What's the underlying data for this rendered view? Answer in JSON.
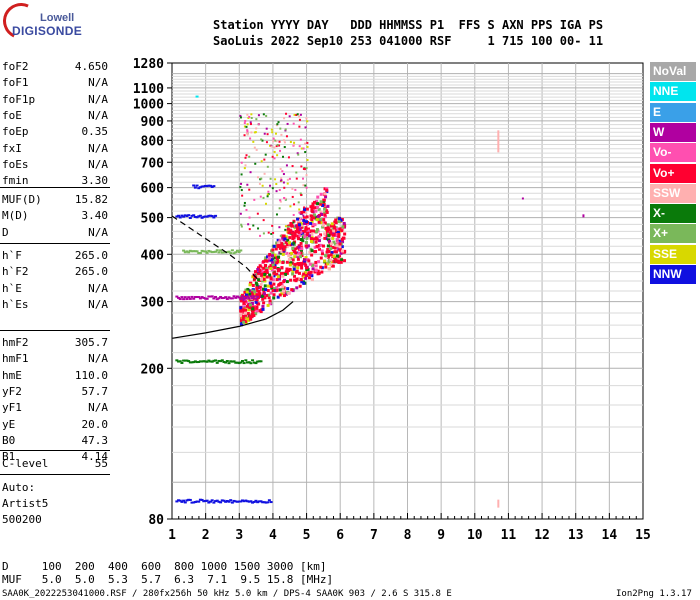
{
  "logo": {
    "line1": "Lowell",
    "line2": "DIGISONDE"
  },
  "header": {
    "line1": "Station YYYY DAY   DDD HHMMSS P1  FFS S AXN PPS IGA PS",
    "line2": "SaoLuis 2022 Sep10 253 041000 RSF     1 715 100 00- 11"
  },
  "params": {
    "group1": [
      {
        "name": "foF2",
        "value": "4.650"
      },
      {
        "name": "foF1",
        "value": "N/A"
      },
      {
        "name": "foF1p",
        "value": "N/A"
      },
      {
        "name": "foE",
        "value": "N/A"
      },
      {
        "name": "foEp",
        "value": "0.35"
      },
      {
        "name": "fxI",
        "value": "N/A"
      },
      {
        "name": "foEs",
        "value": "N/A"
      },
      {
        "name": "fmin",
        "value": "3.30"
      }
    ],
    "group2": [
      {
        "name": "MUF(D)",
        "value": "15.82"
      },
      {
        "name": "M(D)",
        "value": "3.40"
      },
      {
        "name": "D",
        "value": "N/A"
      }
    ],
    "group3": [
      {
        "name": "h`F",
        "value": "265.0"
      },
      {
        "name": "h`F2",
        "value": "265.0"
      },
      {
        "name": "h`E",
        "value": "N/A"
      },
      {
        "name": "h`Es",
        "value": "N/A"
      }
    ],
    "group4": [
      {
        "name": "hmF2",
        "value": "305.7"
      },
      {
        "name": "hmF1",
        "value": "N/A"
      },
      {
        "name": "hmE",
        "value": "110.0"
      },
      {
        "name": "yF2",
        "value": "57.7"
      },
      {
        "name": "yF1",
        "value": "N/A"
      },
      {
        "name": "yE",
        "value": "20.0"
      },
      {
        "name": "B0",
        "value": "47.3"
      },
      {
        "name": "B1",
        "value": "4.14"
      }
    ],
    "group5": [
      {
        "name": "C-level",
        "value": "55"
      }
    ],
    "auto": [
      "Auto:",
      "Artist5",
      "500200"
    ]
  },
  "legend": [
    {
      "label": "NoVal",
      "color": "#a8a8a8"
    },
    {
      "label": "NNE",
      "color": "#00e5ee"
    },
    {
      "label": "E",
      "color": "#3aa0e8"
    },
    {
      "label": "W",
      "color": "#b000a0"
    },
    {
      "label": "Vo-",
      "color": "#ff4fb0"
    },
    {
      "label": "Vo+",
      "color": "#ff0030"
    },
    {
      "label": "SSW",
      "color": "#ffb0b0"
    },
    {
      "label": "X-",
      "color": "#0a7a0a"
    },
    {
      "label": "X+",
      "color": "#7ab85a"
    },
    {
      "label": "SSE",
      "color": "#d8d800"
    },
    {
      "label": "NNW",
      "color": "#1010e0"
    }
  ],
  "bottom_table": {
    "row1": "D     100  200  400  600  800 1000 1500 3000 [km]",
    "row2": "MUF   5.0  5.0  5.3  5.7  6.3  7.1  9.5 15.8 [MHz]"
  },
  "footer": {
    "left": "SAA0K_2022253041000.RSF / 280fx256h 50 kHz 5.0 km / DPS-4 SAA0K 903 / 2.6 S 315.8 E",
    "right": "Ion2Png 1.3.17"
  },
  "chart_data": {
    "type": "scatter",
    "title": "",
    "xlabel": "",
    "ylabel": "",
    "xlim": [
      1,
      15
    ],
    "ylim": [
      80,
      1280
    ],
    "yscale": "log",
    "x_ticks": [
      "1",
      "2",
      "3",
      "4",
      "5",
      "6",
      "7",
      "8",
      "9",
      "10",
      "11",
      "12",
      "13",
      "14",
      "15"
    ],
    "y_ticks": [
      "80",
      "200",
      "300",
      "400",
      "500",
      "600",
      "700",
      "800",
      "900",
      "1000",
      "1100",
      "1280"
    ],
    "grid": true,
    "legend_placement": "right",
    "series": [
      {
        "name": "F-trace cloud",
        "color": "#ff0030",
        "points": [
          [
            3.4,
            300
          ],
          [
            3.8,
            330
          ],
          [
            4.2,
            380
          ],
          [
            4.6,
            420
          ],
          [
            5.0,
            450
          ],
          [
            5.4,
            430
          ],
          [
            5.7,
            410
          ],
          [
            5.9,
            380
          ]
        ]
      },
      {
        "name": "Es layer",
        "color": "#0a7a0a",
        "points": [
          [
            1.2,
            210
          ],
          [
            2.0,
            210
          ],
          [
            3.0,
            210
          ],
          [
            3.5,
            210
          ]
        ]
      },
      {
        "name": "E trace",
        "color": "#1010e0",
        "points": [
          [
            1.2,
            90
          ],
          [
            2.0,
            90
          ],
          [
            3.0,
            90
          ],
          [
            3.8,
            90
          ]
        ]
      }
    ],
    "profile_solid": [
      [
        1.0,
        240
      ],
      [
        2.0,
        248
      ],
      [
        3.0,
        258
      ],
      [
        3.8,
        270
      ],
      [
        4.3,
        285
      ],
      [
        4.6,
        300
      ]
    ],
    "profile_dashed": [
      [
        1.0,
        505
      ],
      [
        2.0,
        440
      ],
      [
        2.7,
        400
      ],
      [
        3.2,
        370
      ],
      [
        3.6,
        340
      ]
    ]
  }
}
